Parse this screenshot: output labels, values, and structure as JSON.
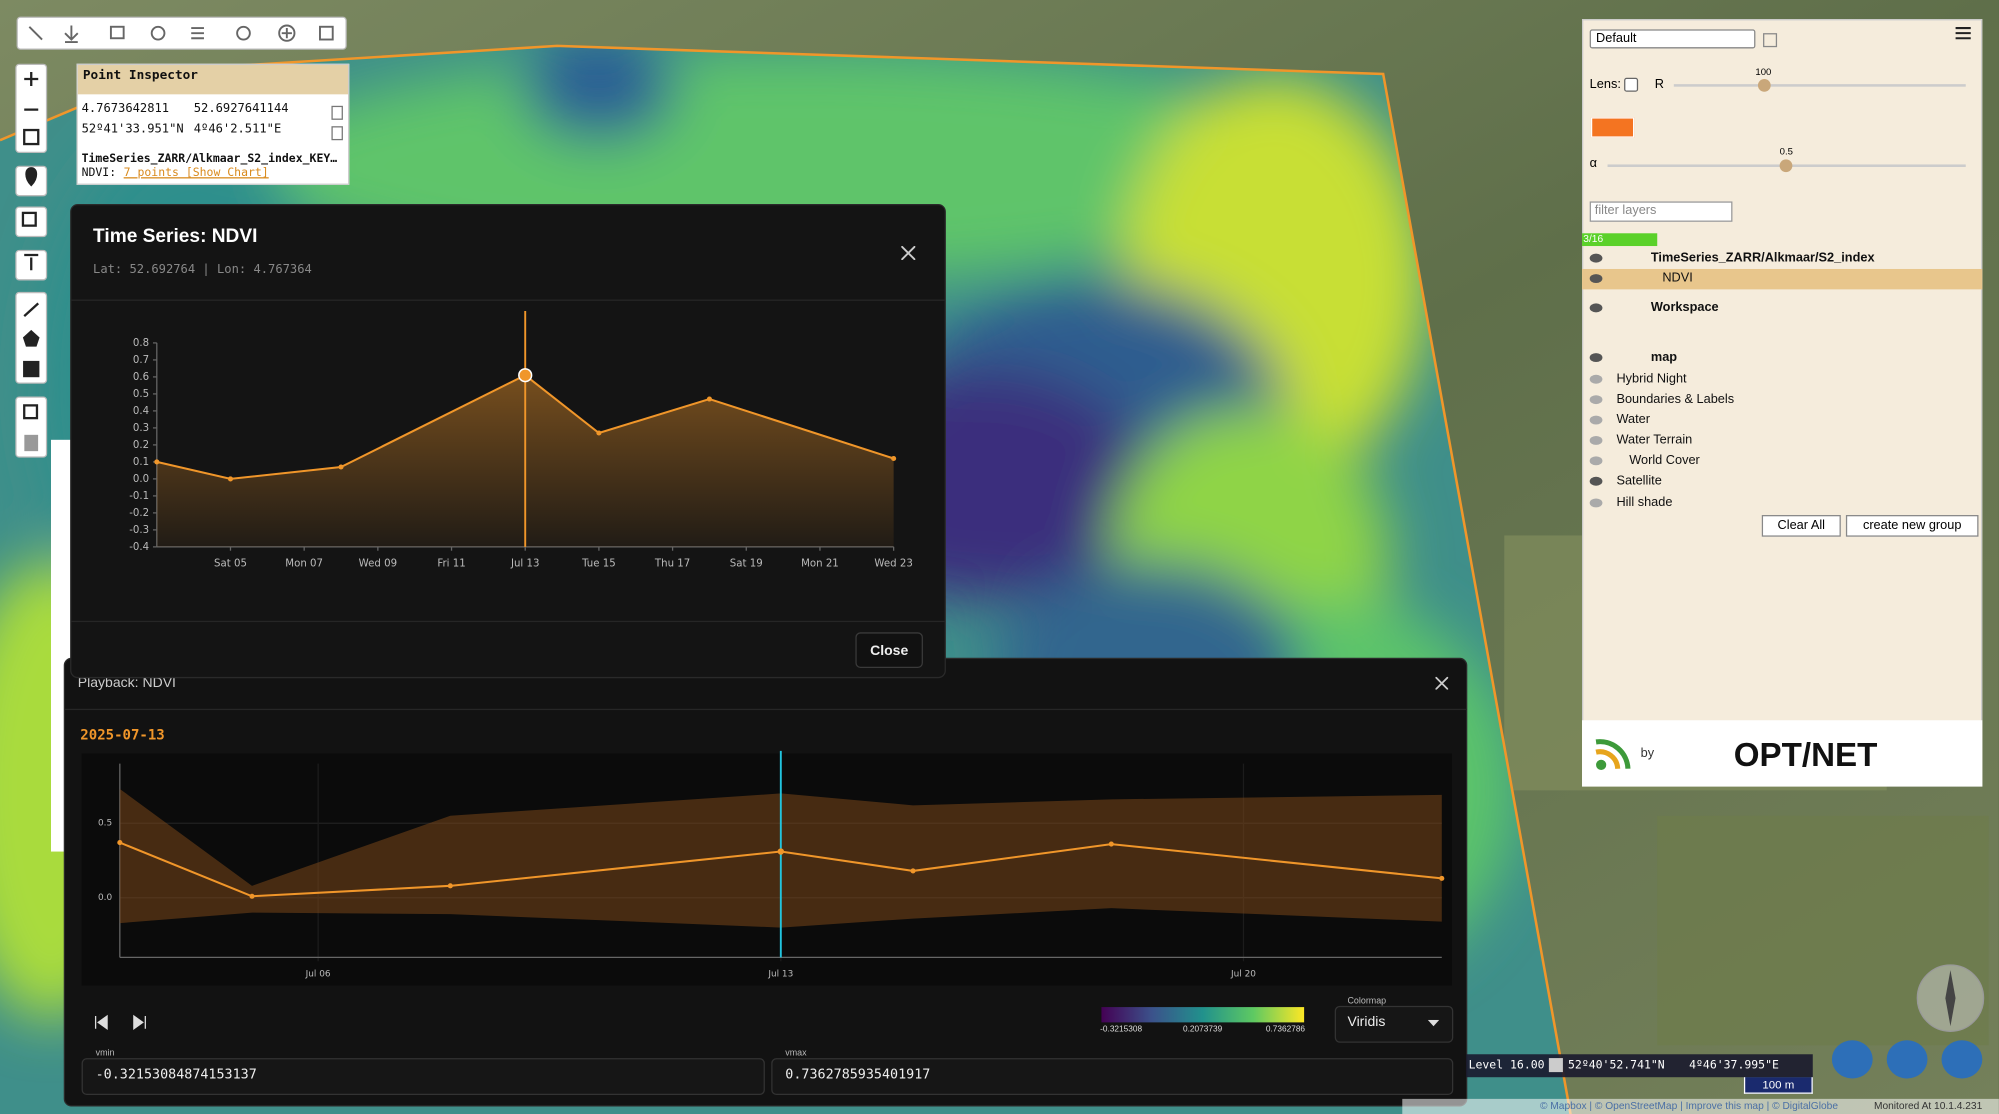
{
  "point_inspector": {
    "title": "Point Inspector",
    "lon": "4.7673642811",
    "lat": "52.6927641144",
    "lat_dms": "52º41'33.951\"N",
    "lon_dms": "4º46'2.511\"E",
    "layer": "TimeSeries_ZARR/Alkmaar_S2_index_KEY…",
    "ndvi_label": "NDVI:",
    "ndvi_link": "7 points [Show Chart]"
  },
  "chart_data": [
    {
      "type": "line",
      "title": "Time Series: NDVI",
      "subtitle": "Lat: 52.692764 | Lon: 4.767364",
      "x": [
        3,
        5,
        8,
        13,
        15,
        18,
        23
      ],
      "series": [
        {
          "color": "#f0962a",
          "values": [
            0.1,
            0.0,
            0.07,
            0.61,
            0.27,
            0.47,
            0.12
          ]
        }
      ],
      "area": true,
      "grid": false,
      "cursor_x": 13,
      "cursor_color": "#f0962a",
      "xlim": [
        3,
        23
      ],
      "xticks": [
        {
          "value": 5,
          "label": "Sat 05"
        },
        {
          "value": 7,
          "label": "Mon 07"
        },
        {
          "value": 9,
          "label": "Wed 09"
        },
        {
          "value": 11,
          "label": "Fri 11"
        },
        {
          "value": 13,
          "label": "Jul 13"
        },
        {
          "value": 15,
          "label": "Tue 15"
        },
        {
          "value": 17,
          "label": "Thu 17"
        },
        {
          "value": 19,
          "label": "Sat 19"
        },
        {
          "value": 21,
          "label": "Mon 21"
        },
        {
          "value": 23,
          "label": "Wed 23"
        }
      ],
      "ylim": [
        -0.4,
        0.8
      ],
      "yticks": [
        0.8,
        0.7,
        0.6,
        0.5,
        0.4,
        0.3,
        0.2,
        0.1,
        {
          "value": 0,
          "label": "0.0"
        },
        -0.1,
        -0.2,
        -0.3,
        -0.4
      ]
    },
    {
      "type": "line",
      "title": "Playback: NDVI",
      "x": [
        3,
        5,
        8,
        13,
        15,
        18,
        23
      ],
      "series": [
        {
          "color": "#f0962a",
          "values": [
            0.37,
            0.01,
            0.08,
            0.31,
            0.18,
            0.36,
            0.13
          ]
        }
      ],
      "range": {
        "color": "#7a4719",
        "high": [
          0.73,
          0.08,
          0.55,
          0.7,
          0.62,
          0.66,
          0.69
        ],
        "low": [
          -0.17,
          -0.1,
          -0.11,
          -0.2,
          -0.14,
          -0.07,
          -0.16
        ]
      },
      "area": false,
      "grid": true,
      "cursor_x": 13,
      "cursor_color": "#22c4de",
      "xlim": [
        3,
        23
      ],
      "xticks": [
        {
          "value": 6,
          "label": "Jul 06"
        },
        {
          "value": 13,
          "label": "Jul 13"
        },
        {
          "value": 20,
          "label": "Jul 20"
        }
      ],
      "ylim": [
        -0.4,
        0.9
      ],
      "yticks": [
        0.5,
        {
          "value": 0,
          "label": "0.0"
        }
      ]
    }
  ],
  "time_series_panel": {
    "close_button": "Close"
  },
  "playback_panel": {
    "date": "2025-07-13",
    "colormap_label": "Colormap",
    "colormap": "Viridis",
    "colorbar_labels": [
      "-0.3215308",
      "0.2073739",
      "0.7362786"
    ],
    "vmin_label": "vmin",
    "vmin": "-0.32153084874153137",
    "vmax_label": "vmax",
    "vmax": "0.7362785935401917"
  },
  "layer_panel": {
    "preset": "Default",
    "lens_label": "Lens:",
    "r_label": "R",
    "r_value": "100",
    "alpha_label": "α",
    "alpha_value": "0.5",
    "filter_placeholder": "filter layers",
    "count": "3/16",
    "layers": [
      "TimeSeries_ZARR/Alkmaar/S2_index",
      "NDVI",
      "Workspace",
      "map",
      "Hybrid Night",
      "Boundaries & Labels",
      "Water",
      "Water Terrain",
      "World Cover",
      "Satellite",
      "Hill shade"
    ],
    "clear_all": "Clear All",
    "create_group": "create new group",
    "by": "by",
    "logo": "OPT/NET"
  },
  "status_bar": {
    "level": "Level 16.00",
    "lat": "52º40'52.741\"N",
    "lon": "4º46'37.995\"E",
    "scale": "100 m",
    "attribution": "© Mapbox | © OpenStreetMap | Improve this map | © DigitalGlobe",
    "monitored": "Monitored At 10.1.4.231"
  }
}
